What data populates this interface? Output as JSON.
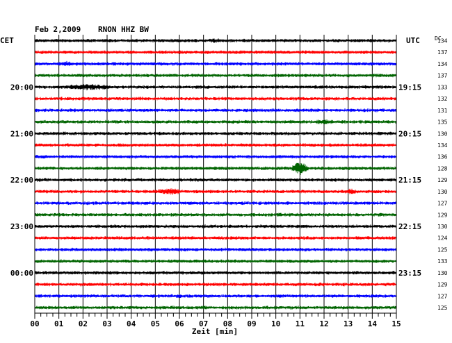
{
  "header": {
    "date": "Feb 2,2009",
    "station": "RNON HHZ BW",
    "left_zone": "CET",
    "right_zone": "UTC",
    "dc_label": "DC"
  },
  "chart_data": {
    "type": "line",
    "title": "Feb 2,2009   RNON HHZ BW",
    "xlabel": "Zeit [min]",
    "xlim": [
      0,
      15
    ],
    "x_ticks": [
      "00",
      "01",
      "02",
      "03",
      "04",
      "05",
      "06",
      "07",
      "08",
      "09",
      "10",
      "11",
      "12",
      "13",
      "14",
      "15"
    ],
    "minor_ticks_per_minute": 4,
    "grid": true,
    "trace_colors": [
      "#000000",
      "#ff0000",
      "#0000ff",
      "#006400"
    ],
    "left_hour_labels": [
      {
        "row": 4,
        "text": "20:00"
      },
      {
        "row": 8,
        "text": "21:00"
      },
      {
        "row": 12,
        "text": "22:00"
      },
      {
        "row": 16,
        "text": "23:00"
      },
      {
        "row": 20,
        "text": "00:00"
      }
    ],
    "right_hour_labels": [
      {
        "row": 4,
        "text": "19:15"
      },
      {
        "row": 8,
        "text": "20:15"
      },
      {
        "row": 12,
        "text": "21:15"
      },
      {
        "row": 16,
        "text": "22:15"
      },
      {
        "row": 20,
        "text": "23:15"
      }
    ],
    "dc_values": [
      "134",
      "137",
      "134",
      "137",
      "133",
      "132",
      "131",
      "135",
      "130",
      "134",
      "136",
      "128",
      "129",
      "130",
      "127",
      "129",
      "130",
      "124",
      "125",
      "133",
      "130",
      "129",
      "127",
      "125"
    ],
    "events": [
      {
        "row": 4,
        "minute": 2.3,
        "width_min": 1.2,
        "amp": 0.45
      },
      {
        "row": 11,
        "minute": 11.0,
        "width_min": 0.4,
        "amp": 1.6
      },
      {
        "row": 13,
        "minute": 5.6,
        "width_min": 0.6,
        "amp": 0.5
      },
      {
        "row": 13,
        "minute": 13.1,
        "width_min": 0.3,
        "amp": 0.4
      },
      {
        "row": 7,
        "minute": 12.0,
        "width_min": 0.4,
        "amp": 0.35
      },
      {
        "row": 0,
        "minute": 7.5,
        "width_min": 0.3,
        "amp": 0.3
      },
      {
        "row": 2,
        "minute": 1.3,
        "width_min": 0.3,
        "amp": 0.3
      }
    ]
  }
}
